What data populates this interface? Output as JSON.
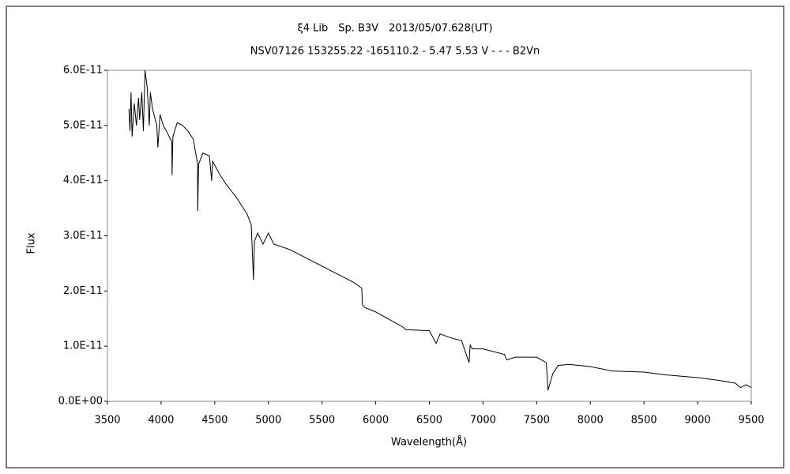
{
  "chart_data": {
    "type": "line",
    "title": "ξ4 Lib　Sp. B3V　2013/05/07.628(UT)",
    "subtitle": "NSV07126 153255.22 -165110.2 - 5.47 5.53 V - - - B2Vn",
    "x_label": "Wavelength(Å)",
    "y_label": "Flux",
    "x": [
      3700,
      3710,
      3720,
      3730,
      3750,
      3770,
      3790,
      3800,
      3820,
      3835,
      3850,
      3870,
      3890,
      3900,
      3920,
      3960,
      3970,
      3990,
      4020,
      4050,
      4100,
      4102,
      4110,
      4150,
      4200,
      4250,
      4300,
      4340,
      4341,
      4350,
      4390,
      4450,
      4471,
      4480,
      4550,
      4600,
      4700,
      4800,
      4840,
      4861,
      4870,
      4900,
      4950,
      5000,
      5050,
      5200,
      5500,
      5800,
      5870,
      5876,
      5900,
      6000,
      6250,
      6280,
      6500,
      6563,
      6600,
      6700,
      6800,
      6870,
      6880,
      6900,
      7000,
      7200,
      7220,
      7300,
      7500,
      7590,
      7605,
      7650,
      7700,
      7800,
      8000,
      8200,
      8500,
      8700,
      9000,
      9200,
      9350,
      9400,
      9450,
      9500
    ],
    "values": [
      5.3e-11,
      4.9e-11,
      5.6e-11,
      4.8e-11,
      5.4e-11,
      5e-11,
      5.5e-11,
      5.1e-11,
      5.6e-11,
      4.9e-11,
      6e-11,
      5.7e-11,
      5e-11,
      5.6e-11,
      5.3e-11,
      5e-11,
      4.6e-11,
      5.2e-11,
      5e-11,
      4.9e-11,
      4.7e-11,
      4.1e-11,
      4.8e-11,
      5.05e-11,
      5e-11,
      4.9e-11,
      4.75e-11,
      4.3e-11,
      3.45e-11,
      4.3e-11,
      4.5e-11,
      4.45e-11,
      4e-11,
      4.35e-11,
      4.1e-11,
      3.95e-11,
      3.7e-11,
      3.4e-11,
      3.2e-11,
      2.2e-11,
      2.9e-11,
      3.05e-11,
      2.85e-11,
      3.05e-11,
      2.85e-11,
      2.75e-11,
      2.45e-11,
      2.15e-11,
      2.05e-11,
      1.75e-11,
      1.7e-11,
      1.62e-11,
      1.35e-11,
      1.3e-11,
      1.28e-11,
      1.05e-11,
      1.22e-11,
      1.15e-11,
      1.1e-11,
      7e-12,
      1.02e-11,
      9.5e-12,
      9.5e-12,
      8.5e-12,
      7.5e-12,
      8e-12,
      8e-12,
      7e-12,
      2e-12,
      5e-12,
      6.5e-12,
      6.7e-12,
      6.3e-12,
      5.5e-12,
      5.3e-12,
      4.8e-12,
      4.3e-12,
      3.8e-12,
      3.3e-12,
      2.5e-12,
      3e-12,
      2.5e-12
    ],
    "color": "#000000",
    "xlim": [
      3500,
      9500
    ],
    "xticks": [
      3500,
      4000,
      4500,
      5000,
      5500,
      6000,
      6500,
      7000,
      7500,
      8000,
      8500,
      9000,
      9500
    ],
    "ylim": [
      0,
      6e-11
    ],
    "yticks": [
      {
        "value": 0,
        "label": "0.0E+00"
      },
      {
        "value": 1e-11,
        "label": "1.0E-11"
      },
      {
        "value": 2e-11,
        "label": "2.0E-11"
      },
      {
        "value": 3e-11,
        "label": "3.0E-11"
      },
      {
        "value": 4e-11,
        "label": "4.0E-11"
      },
      {
        "value": 5e-11,
        "label": "5.0E-11"
      },
      {
        "value": 6e-11,
        "label": "6.0E-11"
      }
    ]
  }
}
